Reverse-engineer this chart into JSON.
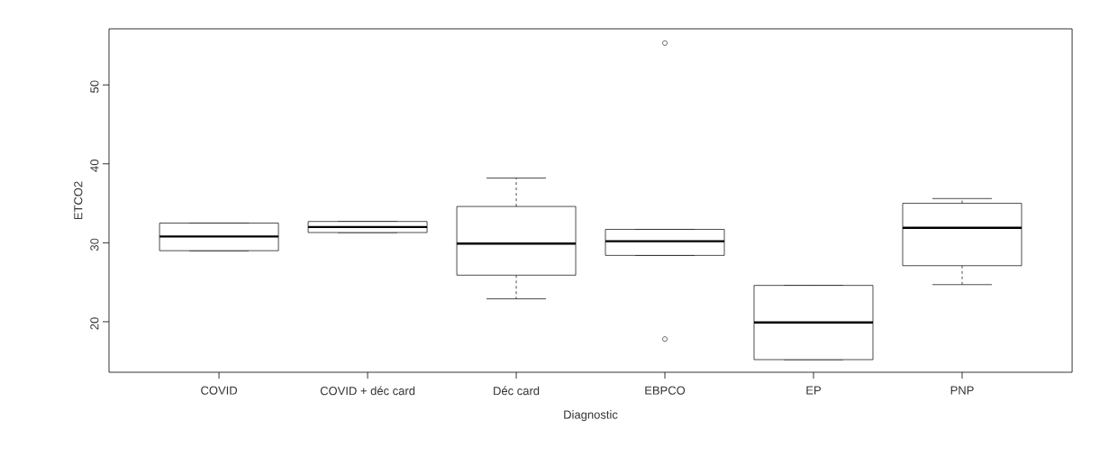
{
  "chart_data": {
    "type": "box",
    "xlabel": "Diagnostic",
    "ylabel": "ETCO2",
    "categories": [
      "COVID",
      "COVID + déc card",
      "Déc card",
      "EBPCO",
      "EP",
      "PNP"
    ],
    "boxes": [
      {
        "low": 29.0,
        "q1": 29.0,
        "median": 30.8,
        "q3": 32.5,
        "high": 32.5
      },
      {
        "low": 31.3,
        "q1": 31.3,
        "median": 32.0,
        "q3": 32.7,
        "high": 32.7
      },
      {
        "low": 22.9,
        "q1": 25.9,
        "median": 29.9,
        "q3": 34.6,
        "high": 38.2
      },
      {
        "low": 28.4,
        "q1": 28.4,
        "median": 30.2,
        "q3": 31.7,
        "high": 31.7,
        "outliers": [
          55.3,
          17.8
        ]
      },
      {
        "low": 15.2,
        "q1": 15.2,
        "median": 19.9,
        "q3": 24.6,
        "high": 24.6
      },
      {
        "low": 24.7,
        "q1": 27.1,
        "median": 31.9,
        "q3": 35.0,
        "high": 35.6
      }
    ],
    "ylim": [
      13.6,
      57.1
    ],
    "yticks": [
      20,
      30,
      40,
      50
    ]
  }
}
